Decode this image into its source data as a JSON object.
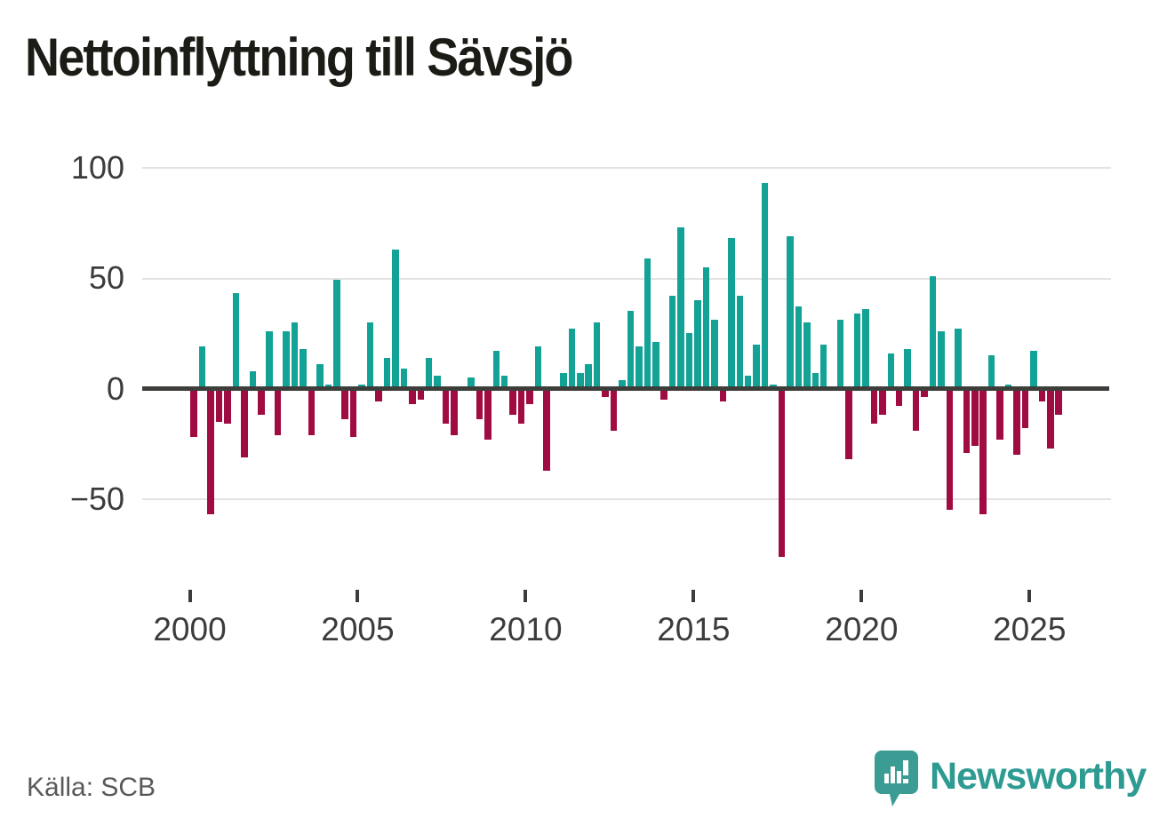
{
  "title": "Nettoinflyttning till Sävsjö",
  "source": "Källa: SCB",
  "brand": {
    "name": "Newsworthy",
    "icon": "newsworthy-pin-barchart-icon"
  },
  "colors": {
    "positive": "#12a296",
    "negative": "#a00b42",
    "zero_axis": "#3d3d3a",
    "grid": "#e3e3e3",
    "tick_label": "#3c3c3c",
    "title_text": "#1c1c17",
    "source_text": "#595959",
    "brand_teal": "#2e9b93"
  },
  "chart_data": {
    "type": "bar",
    "title": "Nettoinflyttning till Sävsjö",
    "xlabel": "",
    "ylabel": "",
    "legend": "none",
    "grid": "horizontal gridlines at 100, 50, -50; bold zero line",
    "ylim": [
      -85,
      105
    ],
    "yticks": [
      100,
      50,
      0,
      -50
    ],
    "y_tick_labels": [
      "100",
      "50",
      "0",
      "−50"
    ],
    "x_tick_labels": [
      "2000",
      "2005",
      "2010",
      "2015",
      "2020",
      "2025"
    ],
    "frequency": "quarterly",
    "quarters": [
      "2000 Q1",
      "2000 Q2",
      "2000 Q3",
      "2000 Q4",
      "2001 Q1",
      "2001 Q2",
      "2001 Q3",
      "2001 Q4",
      "2002 Q1",
      "2002 Q2",
      "2002 Q3",
      "2002 Q4",
      "2003 Q1",
      "2003 Q2",
      "2003 Q3",
      "2003 Q4",
      "2004 Q1",
      "2004 Q2",
      "2004 Q3",
      "2004 Q4",
      "2005 Q1",
      "2005 Q2",
      "2005 Q3",
      "2005 Q4",
      "2006 Q1",
      "2006 Q2",
      "2006 Q3",
      "2006 Q4",
      "2007 Q1",
      "2007 Q2",
      "2007 Q3",
      "2007 Q4",
      "2008 Q1",
      "2008 Q2",
      "2008 Q3",
      "2008 Q4",
      "2009 Q1",
      "2009 Q2",
      "2009 Q3",
      "2009 Q4",
      "2010 Q1",
      "2010 Q2",
      "2010 Q3",
      "2010 Q4",
      "2011 Q1",
      "2011 Q2",
      "2011 Q3",
      "2011 Q4",
      "2012 Q1",
      "2012 Q2",
      "2012 Q3",
      "2012 Q4",
      "2013 Q1",
      "2013 Q2",
      "2013 Q3",
      "2013 Q4",
      "2014 Q1",
      "2014 Q2",
      "2014 Q3",
      "2014 Q4",
      "2015 Q1",
      "2015 Q2",
      "2015 Q3",
      "2015 Q4",
      "2016 Q1",
      "2016 Q2",
      "2016 Q3",
      "2016 Q4",
      "2017 Q1",
      "2017 Q2",
      "2017 Q3",
      "2017 Q4",
      "2018 Q1",
      "2018 Q2",
      "2018 Q3",
      "2018 Q4",
      "2019 Q1",
      "2019 Q2",
      "2019 Q3",
      "2019 Q4",
      "2020 Q1",
      "2020 Q2",
      "2020 Q3",
      "2020 Q4",
      "2021 Q1",
      "2021 Q2",
      "2021 Q3",
      "2021 Q4",
      "2022 Q1",
      "2022 Q2",
      "2022 Q3",
      "2022 Q4",
      "2023 Q1",
      "2023 Q2",
      "2023 Q3",
      "2023 Q4",
      "2024 Q1",
      "2024 Q2",
      "2024 Q3",
      "2024 Q4",
      "2025 Q1",
      "2025 Q2",
      "2025 Q3",
      "2025 Q4"
    ],
    "values": [
      -22,
      19,
      -57,
      -15,
      -16,
      43,
      -31,
      8,
      -12,
      26,
      -21,
      26,
      30,
      18,
      -21,
      11,
      2,
      49,
      -14,
      -22,
      2,
      30,
      -6,
      14,
      63,
      9,
      -7,
      -5,
      14,
      6,
      -16,
      -21,
      0,
      5,
      -14,
      -23,
      17,
      6,
      -12,
      -16,
      -7,
      19,
      -37,
      0,
      7,
      27,
      7,
      11,
      30,
      -4,
      -19,
      4,
      35,
      19,
      59,
      21,
      -5,
      42,
      73,
      25,
      40,
      55,
      31,
      -6,
      68,
      42,
      6,
      20,
      93,
      2,
      -76,
      69,
      37,
      30,
      7,
      20,
      0,
      31,
      -32,
      34,
      36,
      -16,
      -12,
      16,
      -8,
      18,
      -19,
      -4,
      51,
      26,
      -55,
      27,
      -29,
      -26,
      -57,
      15,
      -23,
      2,
      -30,
      -18,
      17,
      -6,
      -27,
      -12
    ]
  }
}
